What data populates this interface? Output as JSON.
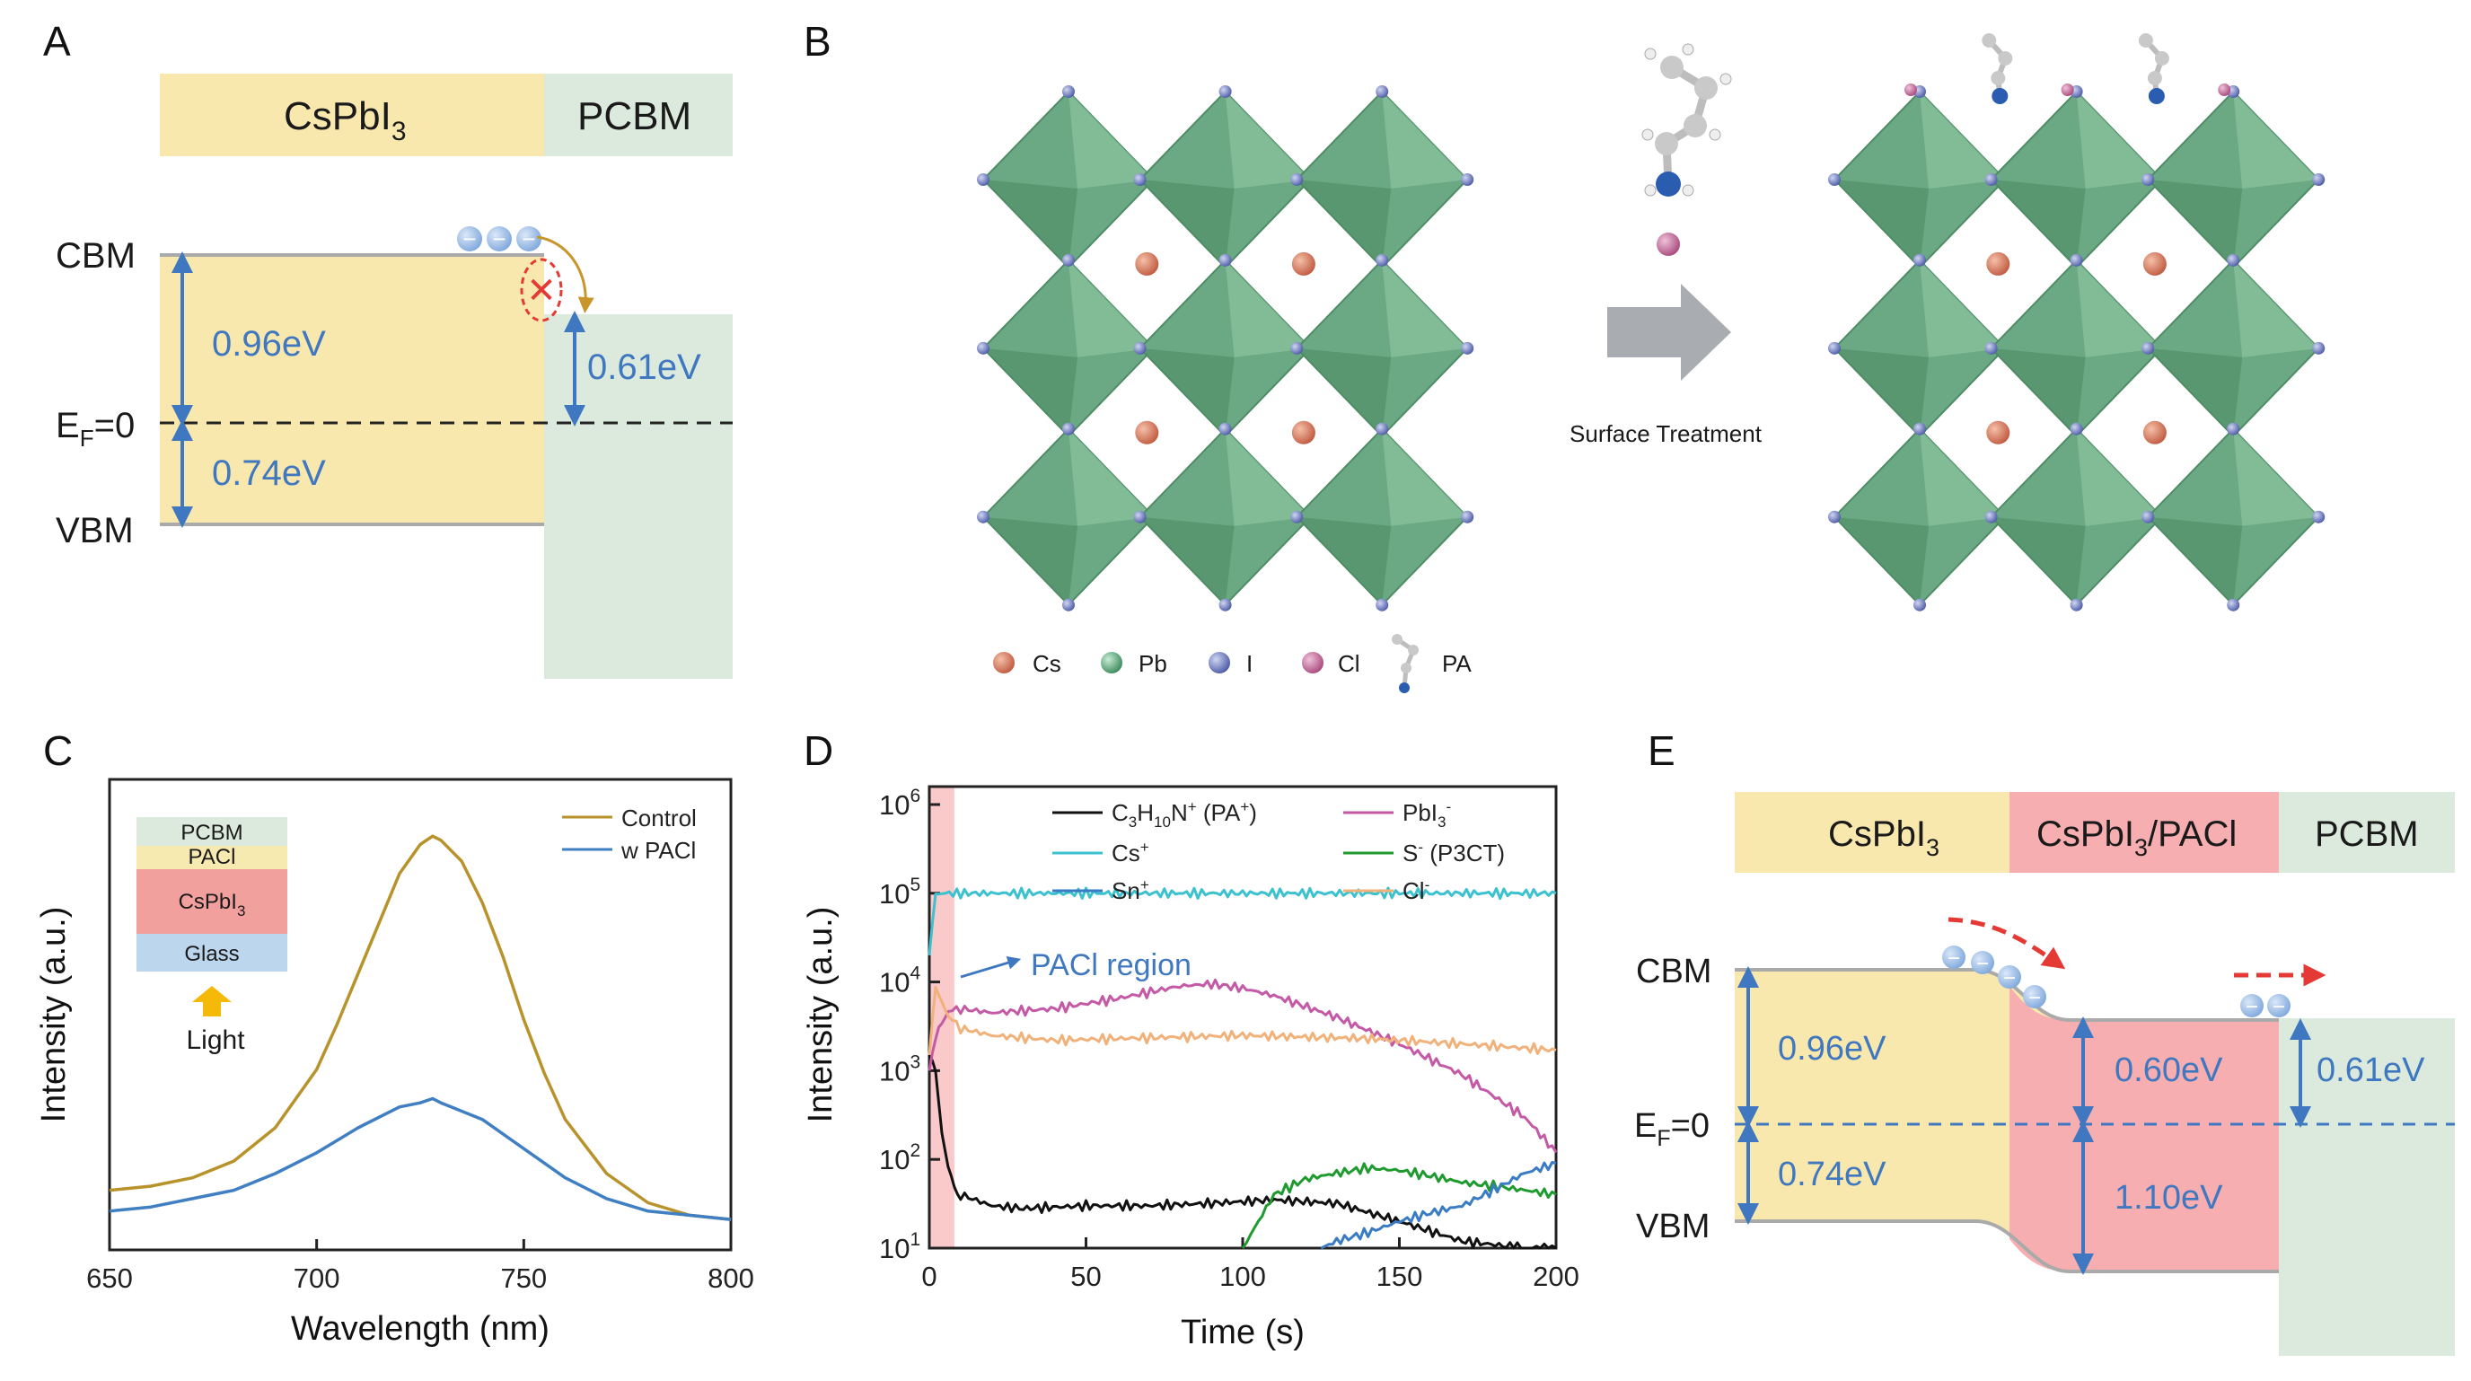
{
  "panel_labels": {
    "a": "A",
    "b": "B",
    "c": "C",
    "d": "D",
    "e": "E"
  },
  "panel_a": {
    "layer_left": "CsPbI",
    "layer_left_sub": "3",
    "layer_right": "PCBM",
    "cbm": "CBM",
    "ef_main": "E",
    "ef_sub": "F",
    "ef_tail": "=0",
    "vbm": "VBM",
    "gap_cbm": "0.96eV",
    "gap_vbm": "0.74eV",
    "gap_pcbm": "0.61eV",
    "electron_symbol": "−",
    "block_symbol": "✕"
  },
  "panel_b": {
    "arrow_label": "Surface Treatment",
    "legend": [
      {
        "label": "Cs",
        "color": "#c97258"
      },
      {
        "label": "Pb",
        "color": "#4d9a6c"
      },
      {
        "label": "I",
        "color": "#3b4ea0"
      },
      {
        "label": "Cl",
        "color": "#b7608f"
      },
      {
        "label": "PA",
        "color": "#9aa0a8"
      }
    ]
  },
  "panel_c": {
    "chart_data": {
      "type": "line",
      "xlabel": "Wavelength (nm)",
      "ylabel": "Intensity (a.u.)",
      "xlim": [
        650,
        800
      ],
      "xticks": [
        650,
        700,
        750,
        800
      ],
      "yticks_shown": false,
      "series": [
        {
          "name": "Control",
          "color": "#b8922a",
          "x": [
            650,
            660,
            670,
            680,
            690,
            700,
            705,
            710,
            715,
            720,
            725,
            728,
            730,
            735,
            740,
            745,
            750,
            755,
            760,
            770,
            780,
            790,
            800
          ],
          "y": [
            0.1,
            0.11,
            0.13,
            0.17,
            0.25,
            0.39,
            0.5,
            0.62,
            0.74,
            0.86,
            0.93,
            0.95,
            0.94,
            0.89,
            0.79,
            0.66,
            0.51,
            0.38,
            0.27,
            0.14,
            0.07,
            0.04,
            0.03
          ]
        },
        {
          "name": "w PACl",
          "color": "#3f7fc2",
          "x": [
            650,
            660,
            670,
            680,
            690,
            700,
            710,
            720,
            725,
            728,
            730,
            740,
            750,
            760,
            770,
            780,
            790,
            800
          ],
          "y": [
            0.05,
            0.06,
            0.08,
            0.1,
            0.14,
            0.19,
            0.25,
            0.3,
            0.31,
            0.32,
            0.31,
            0.27,
            0.2,
            0.13,
            0.08,
            0.05,
            0.04,
            0.03
          ]
        }
      ]
    },
    "stack": [
      {
        "label": "PCBM",
        "sub": "",
        "color": "#dbeadc"
      },
      {
        "label": "PACl",
        "sub": "",
        "color": "#f7eab0"
      },
      {
        "label": "CsPbI",
        "sub": "3",
        "color": "#f2a09e"
      },
      {
        "label": "Glass",
        "sub": "",
        "color": "#bcd6ee"
      }
    ],
    "light_label": "Light"
  },
  "panel_d": {
    "chart_data": {
      "type": "line",
      "xlabel": "Time (s)",
      "ylabel": "Intensity (a.u.)",
      "xlim": [
        0,
        200
      ],
      "ylim": [
        10,
        1000000
      ],
      "yscale": "log",
      "xticks": [
        0,
        50,
        100,
        150,
        200
      ],
      "yticks": [
        {
          "base": "10",
          "exp": "1"
        },
        {
          "base": "10",
          "exp": "2"
        },
        {
          "base": "10",
          "exp": "3"
        },
        {
          "base": "10",
          "exp": "4"
        },
        {
          "base": "10",
          "exp": "5"
        },
        {
          "base": "10",
          "exp": "6"
        }
      ],
      "series": [
        {
          "name": "C3H10N+ (PA+)",
          "color": "#111111",
          "x": [
            0,
            2,
            4,
            6,
            8,
            10,
            20,
            30,
            50,
            70,
            90,
            110,
            130,
            150,
            170,
            190,
            200
          ],
          "y": [
            1500,
            900,
            200,
            80,
            50,
            40,
            30,
            28,
            30,
            30,
            32,
            35,
            32,
            20,
            12,
            10,
            10
          ]
        },
        {
          "name": "PbI3-",
          "color": "#c45aa6",
          "x": [
            0,
            3,
            6,
            10,
            20,
            40,
            60,
            80,
            90,
            100,
            110,
            130,
            150,
            170,
            190,
            200
          ],
          "y": [
            1000,
            3000,
            4500,
            5000,
            4500,
            5000,
            6500,
            9000,
            9500,
            8500,
            7000,
            4000,
            2000,
            900,
            300,
            120
          ]
        },
        {
          "name": "Cs+",
          "color": "#3cc1cf",
          "x": [
            0,
            2,
            4,
            10,
            50,
            100,
            150,
            200
          ],
          "y": [
            20000,
            90000,
            100000,
            100000,
            100000,
            100000,
            100000,
            100000
          ]
        },
        {
          "name": "S- (P3CT)",
          "color": "#1f9a2e",
          "x": [
            100,
            105,
            110,
            120,
            130,
            140,
            150,
            160,
            170,
            180,
            190,
            200
          ],
          "y": [
            10,
            20,
            40,
            60,
            70,
            80,
            75,
            65,
            55,
            50,
            45,
            40
          ]
        },
        {
          "name": "Sn+",
          "color": "#3a7cc4",
          "x": [
            125,
            130,
            140,
            150,
            160,
            170,
            180,
            190,
            200
          ],
          "y": [
            10,
            12,
            15,
            20,
            25,
            30,
            45,
            70,
            90
          ]
        },
        {
          "name": "Cl-",
          "color": "#f0b27a",
          "x": [
            0,
            2,
            4,
            6,
            10,
            20,
            40,
            60,
            80,
            100,
            120,
            140,
            160,
            180,
            200
          ],
          "y": [
            1500,
            8000,
            6000,
            4000,
            3000,
            2500,
            2200,
            2300,
            2400,
            2500,
            2400,
            2300,
            2100,
            1900,
            1700
          ]
        }
      ],
      "legend": [
        {
          "label": "C",
          "sub1": "3",
          "mid": "H",
          "sub2": "10",
          "tail": "N",
          "sup": "+",
          "extra": " (PA",
          "extra_sup": "+",
          "close": ")"
        },
        {
          "label": "PbI",
          "sub1": "3",
          "sup": "-"
        },
        {
          "label": "Cs",
          "sup": "+"
        },
        {
          "label": "S",
          "sup": "-",
          "tail2": " (P3CT)"
        },
        {
          "label": "Sn",
          "sup": "+"
        },
        {
          "label": "Cl",
          "sup": "-"
        }
      ],
      "annotation": "PACl region"
    }
  },
  "panel_e": {
    "layer_1": "CsPbI",
    "layer_1_sub": "3",
    "layer_2": "CsPbI",
    "layer_2_sub": "3",
    "layer_2_tail": "/PACl",
    "layer_3": "PCBM",
    "cbm": "CBM",
    "ef_main": "E",
    "ef_sub": "F",
    "ef_tail": "=0",
    "vbm": "VBM",
    "gap_1_top": "0.96eV",
    "gap_1_bottom": "0.74eV",
    "gap_2_top": "0.60eV",
    "gap_2_bottom": "1.10eV",
    "gap_3": "0.61eV",
    "electron_symbol": "−"
  }
}
